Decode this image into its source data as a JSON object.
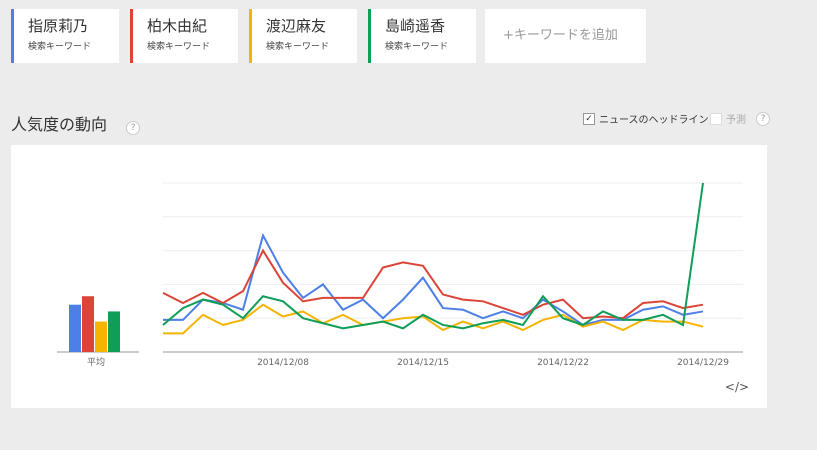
{
  "keyword_cards": [
    {
      "sublabel": "検索キーワード"
    },
    {
      "sublabel": "検索キーワード"
    },
    {
      "sublabel": "検索キーワード"
    },
    {
      "sublabel": "検索キーワード"
    }
  ],
  "add_keyword": "+キーワードを追加",
  "section_title": "人気度の動向",
  "help": "?",
  "options": [
    {
      "label": "ニュースのヘッドライン",
      "checked": true
    },
    {
      "label": "予測",
      "checked": false
    }
  ],
  "embed": "</>",
  "chart_data": {
    "type": "line",
    "ylim": [
      0,
      100
    ],
    "grid": true,
    "average_label": "平均",
    "categories": [
      null,
      null,
      null,
      null,
      null,
      null,
      "2014/12/08",
      null,
      null,
      null,
      null,
      null,
      null,
      "2014/12/15",
      null,
      null,
      null,
      null,
      null,
      null,
      "2014/12/22",
      null,
      null,
      null,
      null,
      null,
      null,
      "2014/12/29"
    ],
    "series": [
      {
        "name": "指原莉乃",
        "color": "#4d7fe6",
        "average": 28,
        "values": [
          19,
          19,
          31,
          29,
          25,
          69,
          47,
          32,
          40,
          25,
          31,
          20,
          31,
          44,
          26,
          25,
          20,
          24,
          20,
          31,
          24,
          16,
          19,
          19,
          25,
          27,
          22,
          24
        ]
      },
      {
        "name": "柏木由紀",
        "color": "#db4437",
        "average": 33,
        "values": [
          35,
          29,
          35,
          29,
          36,
          60,
          41,
          30,
          32,
          32,
          32,
          50,
          53,
          51,
          34,
          31,
          30,
          26,
          22,
          28,
          31,
          20,
          21,
          20,
          29,
          30,
          26,
          28
        ]
      },
      {
        "name": "渡辺麻友",
        "color": "#f4b400",
        "average": 18,
        "values": [
          11,
          11,
          22,
          16,
          19,
          28,
          21,
          24,
          17,
          22,
          16,
          18,
          20,
          21,
          13,
          18,
          14,
          18,
          13,
          19,
          22,
          15,
          18,
          13,
          19,
          18,
          18,
          15
        ]
      },
      {
        "name": "島崎遥香",
        "color": "#0f9d58",
        "average": 24,
        "values": [
          16,
          26,
          31,
          28,
          20,
          33,
          30,
          20,
          17,
          14,
          16,
          18,
          14,
          22,
          16,
          14,
          17,
          19,
          16,
          33,
          20,
          16,
          24,
          19,
          19,
          22,
          16,
          100
        ]
      }
    ]
  }
}
